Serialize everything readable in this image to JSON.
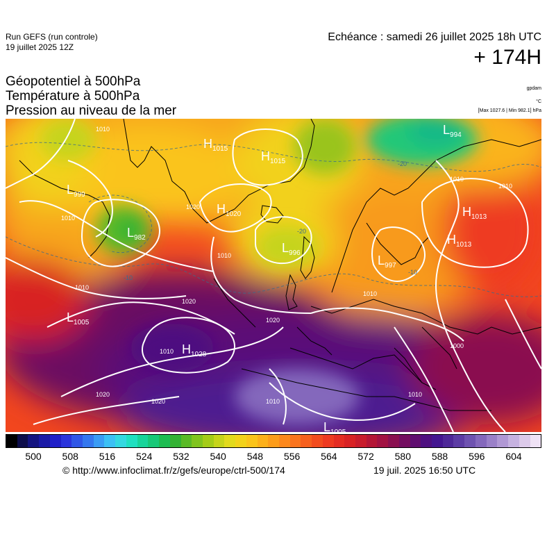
{
  "header": {
    "run_title": "Run GEFS (run controle)",
    "run_date": "19 juillet 2025 12Z",
    "echeance": "Echéance : samedi 26 juillet 2025 18h UTC",
    "hour": "+ 174H"
  },
  "parameters": {
    "geopotential": "Géopotentiel à 500hPa",
    "temperature": "Température à 500hPa",
    "pressure": "Pression au niveau de la mer"
  },
  "units": {
    "geopotential": "gpdam",
    "temperature": "°C",
    "pressure": "[Max 1027.6 | Min 982.1] hPa"
  },
  "pressure_systems": [
    {
      "type": "H",
      "value": "1015"
    },
    {
      "type": "H",
      "value": "1015"
    },
    {
      "type": "L",
      "value": "994"
    },
    {
      "type": "L",
      "value": "999"
    },
    {
      "type": "L",
      "value": "982"
    },
    {
      "type": "H",
      "value": "1020"
    },
    {
      "type": "L",
      "value": "996"
    },
    {
      "type": "H",
      "value": "1013"
    },
    {
      "type": "H",
      "value": "1013"
    },
    {
      "type": "L",
      "value": "997"
    },
    {
      "type": "L",
      "value": "1005"
    },
    {
      "type": "H",
      "value": "1028"
    },
    {
      "type": "L",
      "value": "1005"
    }
  ],
  "isobar_labels": [
    "1010",
    "1010",
    "1010",
    "1010",
    "1020",
    "1020",
    "1020",
    "1020",
    "1010",
    "1010",
    "1000",
    "1010",
    "1010",
    "1010",
    "1020",
    "1010"
  ],
  "isotherm_labels": [
    "-20",
    "-20",
    "-10",
    "-10"
  ],
  "colorbar": {
    "ticks": [
      "500",
      "508",
      "516",
      "524",
      "532",
      "540",
      "548",
      "556",
      "564",
      "572",
      "580",
      "588",
      "596",
      "604"
    ],
    "colors": [
      "#000000",
      "#0d0d4a",
      "#141480",
      "#1a1aa6",
      "#1f1fc8",
      "#2a34dc",
      "#2f56e6",
      "#3477ee",
      "#3a9cf4",
      "#3cc0f4",
      "#34d8e0",
      "#20dfc0",
      "#18d49a",
      "#18c878",
      "#1ebc52",
      "#34b234",
      "#5aba26",
      "#80c41e",
      "#a4cc18",
      "#c6d41a",
      "#e2da1c",
      "#f2d21a",
      "#fac41a",
      "#fcb01a",
      "#fc9c1a",
      "#fc881c",
      "#fa741e",
      "#f6601e",
      "#f24c1e",
      "#ee3a20",
      "#e42c22",
      "#d82224",
      "#c81c2c",
      "#b41636",
      "#a21242",
      "#8a1050",
      "#740e60",
      "#600e70",
      "#4e1080",
      "#441690",
      "#4e2898",
      "#5c3ca4",
      "#6e52b0",
      "#8468bc",
      "#9a80c8",
      "#b098d4",
      "#c6b2e0",
      "#dccaea",
      "#efe2f5"
    ]
  },
  "footer": {
    "credit": "© http://www.infoclimat.fr/z/gefs/europe/ctrl-500/174",
    "generated": "19 juil. 2025 16:50 UTC"
  }
}
